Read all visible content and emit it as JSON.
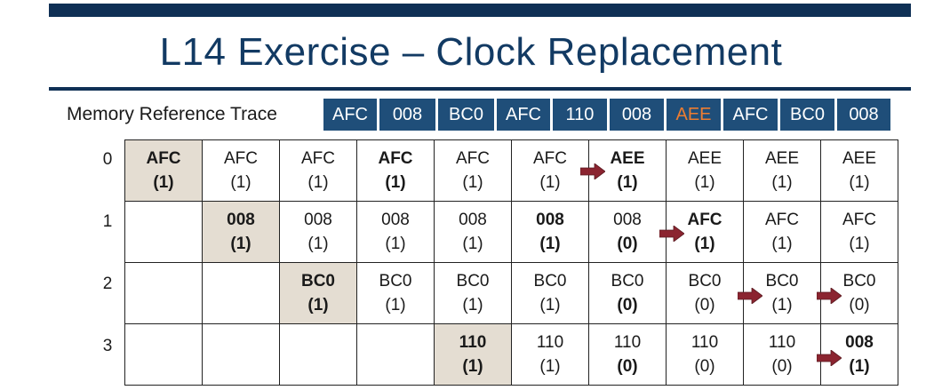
{
  "title": "L14 Exercise – Clock Replacement",
  "trace_label": "Memory Reference Trace",
  "trace": [
    "AFC",
    "008",
    "BC0",
    "AFC",
    "110",
    "008",
    "AEE",
    "AFC",
    "BC0",
    "008"
  ],
  "highlight_trace_index": 6,
  "row_labels": [
    "0",
    "1",
    "2",
    "3"
  ],
  "colors": {
    "bar": "#0f3055",
    "trace_bg": "#1f4e79",
    "highlight": "#ed7d31",
    "arrow": "#8b2430",
    "new_cell": "#e4ddd2"
  },
  "grid": [
    [
      {
        "page": "AFC",
        "bit": "(1)",
        "bold": true,
        "new": true
      },
      {
        "page": "AFC",
        "bit": "(1)"
      },
      {
        "page": "AFC",
        "bit": "(1)"
      },
      {
        "page": "AFC",
        "bit": "(1)",
        "bold": true
      },
      {
        "page": "AFC",
        "bit": "(1)"
      },
      {
        "page": "AFC",
        "bit": "(1)",
        "arrow": true
      },
      {
        "page": "AEE",
        "bit": "(1)",
        "bold": true
      },
      {
        "page": "AEE",
        "bit": "(1)"
      },
      {
        "page": "AEE",
        "bit": "(1)"
      },
      {
        "page": "AEE",
        "bit": "(1)"
      }
    ],
    [
      {
        "page": "",
        "bit": ""
      },
      {
        "page": "008",
        "bit": "(1)",
        "bold": true,
        "new": true
      },
      {
        "page": "008",
        "bit": "(1)"
      },
      {
        "page": "008",
        "bit": "(1)"
      },
      {
        "page": "008",
        "bit": "(1)"
      },
      {
        "page": "008",
        "bit": "(1)",
        "bold": true
      },
      {
        "page": "008",
        "bit": "(0)",
        "boldBit": true,
        "arrow": true
      },
      {
        "page": "AFC",
        "bit": "(1)",
        "bold": true
      },
      {
        "page": "AFC",
        "bit": "(1)"
      },
      {
        "page": "AFC",
        "bit": "(1)"
      }
    ],
    [
      {
        "page": "",
        "bit": ""
      },
      {
        "page": "",
        "bit": ""
      },
      {
        "page": "BC0",
        "bit": "(1)",
        "bold": true,
        "new": true
      },
      {
        "page": "BC0",
        "bit": "(1)"
      },
      {
        "page": "BC0",
        "bit": "(1)"
      },
      {
        "page": "BC0",
        "bit": "(1)"
      },
      {
        "page": "BC0",
        "bit": "(0)",
        "boldBit": true
      },
      {
        "page": "BC0",
        "bit": "(0)",
        "arrow": true
      },
      {
        "page": "BC0",
        "bit": "(1)",
        "arrow": true
      },
      {
        "page": "BC0",
        "bit": "(0)"
      }
    ],
    [
      {
        "page": "",
        "bit": ""
      },
      {
        "page": "",
        "bit": ""
      },
      {
        "page": "",
        "bit": ""
      },
      {
        "page": "",
        "bit": ""
      },
      {
        "page": "110",
        "bit": "(1)",
        "bold": true,
        "new": true
      },
      {
        "page": "110",
        "bit": "(1)"
      },
      {
        "page": "110",
        "bit": "(0)",
        "boldBit": true
      },
      {
        "page": "110",
        "bit": "(0)"
      },
      {
        "page": "110",
        "bit": "(0)",
        "arrow": true
      },
      {
        "page": "008",
        "bit": "(1)",
        "bold": true
      }
    ]
  ]
}
